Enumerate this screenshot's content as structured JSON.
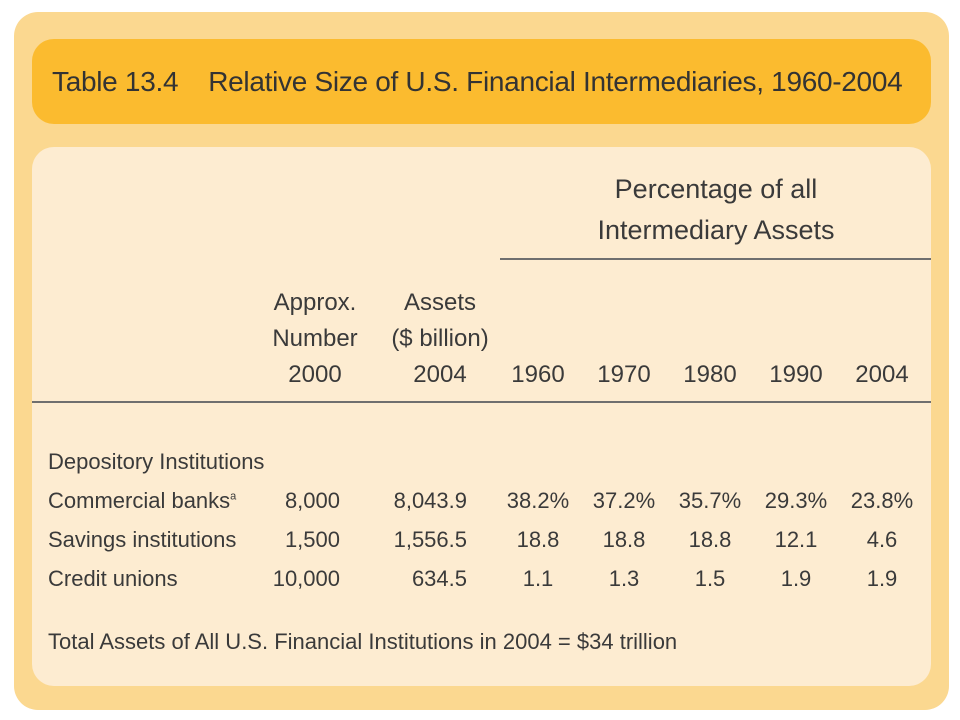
{
  "table": {
    "number": "Table 13.4",
    "title": "Relative Size of U.S. Financial Intermediaries, 1960-2004",
    "percentage_header": [
      "Percentage of all",
      "Intermediary Assets"
    ],
    "col_number_header": [
      "Approx.",
      "Number",
      "2000"
    ],
    "col_assets_header": [
      "Assets",
      "($ billion)",
      "2004"
    ],
    "years": [
      "1960",
      "1970",
      "1980",
      "1990",
      "2004"
    ],
    "section": "Depository Institutions",
    "rows": [
      {
        "name": "Commercial banks",
        "footnote": "a",
        "number": "8,000",
        "assets": "8,043.9",
        "pcts": [
          "38.2%",
          "37.2%",
          "35.7%",
          "29.3%",
          "23.8%"
        ]
      },
      {
        "name": "Savings institutions",
        "footnote": "",
        "number": "1,500",
        "assets": "1,556.5",
        "pcts": [
          "18.8",
          "18.8",
          "18.8",
          "12.1",
          "4.6"
        ]
      },
      {
        "name": "Credit unions",
        "footnote": "",
        "number": "10,000",
        "assets": "634.5",
        "pcts": [
          "1.1",
          "1.3",
          "1.5",
          "1.9",
          "1.9"
        ]
      }
    ],
    "total_note": "Total Assets of All U.S. Financial Institutions in 2004 = $34 trillion"
  }
}
